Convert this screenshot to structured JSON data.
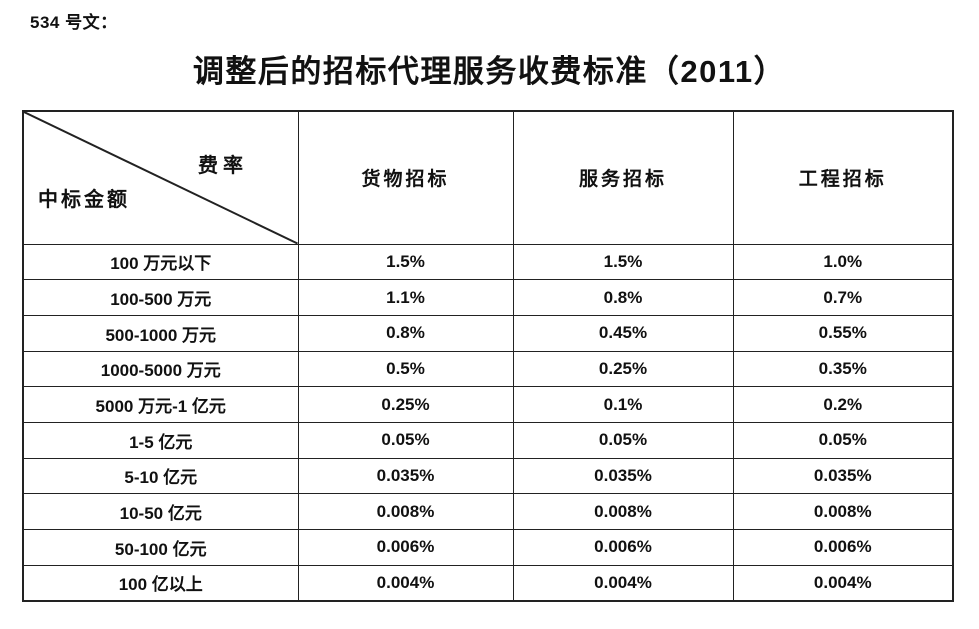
{
  "page": {
    "background": "#ffffff",
    "text_color": "#111111",
    "border_color": "#222222"
  },
  "doc": {
    "doc_number": "534 号文：",
    "title": "调整后的招标代理服务收费标准（2011）"
  },
  "table": {
    "corner": {
      "top_right_label": "费率",
      "bottom_left_label": "中标金额"
    },
    "columns": [
      "货物招标",
      "服务招标",
      "工程招标"
    ],
    "rows": [
      {
        "label": "100 万元以下",
        "values": [
          "1.5%",
          "1.5%",
          "1.0%"
        ]
      },
      {
        "label": "100-500 万元",
        "values": [
          "1.1%",
          "0.8%",
          "0.7%"
        ]
      },
      {
        "label": "500-1000 万元",
        "values": [
          "0.8%",
          "0.45%",
          "0.55%"
        ]
      },
      {
        "label": "1000-5000 万元",
        "values": [
          "0.5%",
          "0.25%",
          "0.35%"
        ]
      },
      {
        "label": "5000 万元-1 亿元",
        "values": [
          "0.25%",
          "0.1%",
          "0.2%"
        ]
      },
      {
        "label": "1-5 亿元",
        "values": [
          "0.05%",
          "0.05%",
          "0.05%"
        ]
      },
      {
        "label": "5-10 亿元",
        "values": [
          "0.035%",
          "0.035%",
          "0.035%"
        ]
      },
      {
        "label": "10-50 亿元",
        "values": [
          "0.008%",
          "0.008%",
          "0.008%"
        ]
      },
      {
        "label": "50-100 亿元",
        "values": [
          "0.006%",
          "0.006%",
          "0.006%"
        ]
      },
      {
        "label": "100 亿以上",
        "values": [
          "0.004%",
          "0.004%",
          "0.004%"
        ]
      }
    ]
  }
}
